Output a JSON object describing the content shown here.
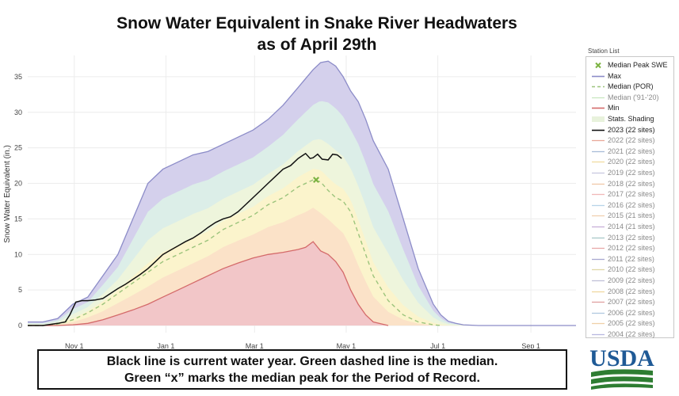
{
  "title_line1": "Snow Water Equivalent in Snake River Headwaters",
  "title_line2": "as of April 29th",
  "caption_line1": "Black line is current water year. Green dashed line is the median.",
  "caption_line2": "Green “x” marks the median peak for the Period of Record.",
  "logo_text": "USDA",
  "legend": {
    "header": "Station List",
    "items": [
      {
        "label": "Median Peak SWE",
        "symbol": "x",
        "color": "#7cb342"
      },
      {
        "label": "Max",
        "symbol": "line",
        "color": "#8c8cc8"
      },
      {
        "label": "Median (POR)",
        "symbol": "dash",
        "color": "#9cc47c"
      },
      {
        "label": "Median ('91-'20)",
        "symbol": "line",
        "color": "#c8e6c0",
        "faded": true
      },
      {
        "label": "Min",
        "symbol": "line",
        "color": "#d46a6a"
      },
      {
        "label": "Stats. Shading",
        "symbol": "band",
        "color": "#e8f2dc"
      },
      {
        "label": "2023 (22 sites)",
        "symbol": "line",
        "color": "#111111"
      },
      {
        "label": "2022 (22 sites)",
        "symbol": "line",
        "color": "#e8a898",
        "faded": true
      },
      {
        "label": "2021 (22 sites)",
        "symbol": "line",
        "color": "#a8bcd8",
        "faded": true
      },
      {
        "label": "2020 (22 sites)",
        "symbol": "line",
        "color": "#f0dca0",
        "faded": true
      },
      {
        "label": "2019 (22 sites)",
        "symbol": "line",
        "color": "#c8c8e0",
        "faded": true
      },
      {
        "label": "2018 (22 sites)",
        "symbol": "line",
        "color": "#f0c8a8",
        "faded": true
      },
      {
        "label": "2017 (22 sites)",
        "symbol": "line",
        "color": "#f0b8b8",
        "faded": true
      },
      {
        "label": "2016 (22 sites)",
        "symbol": "line",
        "color": "#b8d4e8",
        "faded": true
      },
      {
        "label": "2015 (21 sites)",
        "symbol": "line",
        "color": "#f0d0b0",
        "faded": true
      },
      {
        "label": "2014 (21 sites)",
        "symbol": "line",
        "color": "#c8b0d8",
        "faded": true
      },
      {
        "label": "2013 (22 sites)",
        "symbol": "line",
        "color": "#a8c8c8",
        "faded": true
      },
      {
        "label": "2012 (22 sites)",
        "symbol": "line",
        "color": "#e8a8a8",
        "faded": true
      },
      {
        "label": "2011 (22 sites)",
        "symbol": "line",
        "color": "#a8a8d0",
        "faded": true
      },
      {
        "label": "2010 (22 sites)",
        "symbol": "line",
        "color": "#e0d8a8",
        "faded": true
      },
      {
        "label": "2009 (22 sites)",
        "symbol": "line",
        "color": "#c0c0d8",
        "faded": true
      },
      {
        "label": "2008 (22 sites)",
        "symbol": "line",
        "color": "#f0d8a0",
        "faded": true
      },
      {
        "label": "2007 (22 sites)",
        "symbol": "line",
        "color": "#e0a0a0",
        "faded": true
      },
      {
        "label": "2006 (22 sites)",
        "symbol": "line",
        "color": "#b0c8e0",
        "faded": true
      },
      {
        "label": "2005 (22 sites)",
        "symbol": "line",
        "color": "#f0d0a8",
        "faded": true
      },
      {
        "label": "2004 (22 sites)",
        "symbol": "line",
        "color": "#b8b8e0",
        "faded": true
      }
    ]
  },
  "chart_data": {
    "type": "area",
    "title": "Snow Water Equivalent in Snake River Headwaters as of April 29th",
    "xlabel": "",
    "ylabel": "Snow Water Equivalent (in.)",
    "x_unit": "days since Oct 1 (water year)",
    "xlim": [
      0,
      365
    ],
    "ylim": [
      -1,
      38
    ],
    "yticks": [
      0,
      5,
      10,
      15,
      20,
      25,
      30,
      35
    ],
    "xticks": [
      {
        "label": "Nov 1",
        "x": 31
      },
      {
        "label": "Jan 1",
        "x": 92
      },
      {
        "label": "Mar 1",
        "x": 151
      },
      {
        "label": "May 1",
        "x": 212
      },
      {
        "label": "Jul 1",
        "x": 273
      },
      {
        "label": "Sep 1",
        "x": 335
      }
    ],
    "grid": true,
    "legend_position": "right",
    "band_colors": {
      "max_band": "#d4d0ec",
      "p90_band": "#dceee8",
      "p70_band": "#eef5dc",
      "p50_band": "#fbf4cc",
      "p30_band": "#fbe2c8",
      "p10_band": "#f2c6c8"
    },
    "series": [
      {
        "name": "Max",
        "color": "#8c8cc8",
        "x": [
          0,
          10,
          20,
          25,
          30,
          40,
          50,
          60,
          70,
          80,
          90,
          100,
          110,
          120,
          130,
          140,
          150,
          160,
          170,
          180,
          190,
          195,
          200,
          205,
          210,
          215,
          220,
          225,
          230,
          240,
          250,
          260,
          270,
          275,
          280,
          285,
          290,
          300,
          365
        ],
        "values": [
          0.5,
          0.5,
          1,
          2,
          3,
          4,
          7,
          10,
          15,
          20,
          22,
          23,
          24,
          24.5,
          25.5,
          26.5,
          27.5,
          29,
          31,
          33.5,
          36,
          37,
          37.2,
          36.5,
          35,
          33,
          31.5,
          29,
          26,
          22,
          15,
          8,
          3,
          1.5,
          0.6,
          0.3,
          0.1,
          0,
          0
        ]
      },
      {
        "name": "Median (POR)",
        "color": "#9cc47c",
        "x": [
          0,
          10,
          20,
          30,
          40,
          50,
          60,
          70,
          80,
          90,
          100,
          110,
          120,
          130,
          140,
          150,
          160,
          170,
          180,
          190,
          195,
          200,
          205,
          210,
          215,
          220,
          225,
          230,
          240,
          250,
          260,
          270,
          275
        ],
        "values": [
          0,
          0,
          0.2,
          0.8,
          1.8,
          3,
          4.5,
          6,
          7.5,
          9,
          10,
          11,
          12,
          13.5,
          14.5,
          15.5,
          17,
          18,
          19.5,
          20.5,
          20.2,
          19,
          18,
          17.5,
          16,
          13,
          10,
          7,
          3.5,
          1.5,
          0.5,
          0.1,
          0
        ]
      },
      {
        "name": "Min",
        "color": "#d46a6a",
        "x": [
          0,
          20,
          30,
          40,
          50,
          60,
          70,
          80,
          90,
          100,
          110,
          120,
          130,
          140,
          150,
          160,
          170,
          180,
          185,
          190,
          195,
          200,
          205,
          210,
          215,
          220,
          225,
          230,
          240
        ],
        "values": [
          0,
          0,
          0.1,
          0.3,
          0.8,
          1.5,
          2.2,
          3,
          4,
          5,
          6,
          7,
          8,
          8.8,
          9.5,
          10,
          10.3,
          10.7,
          11,
          11.8,
          10.5,
          10,
          9,
          7.5,
          5,
          3,
          1.5,
          0.5,
          0
        ]
      },
      {
        "name": "2023 (22 sites)",
        "color": "#111111",
        "x": [
          0,
          10,
          20,
          25,
          28,
          32,
          36,
          40,
          45,
          50,
          55,
          60,
          65,
          70,
          75,
          80,
          85,
          90,
          95,
          100,
          105,
          110,
          115,
          120,
          125,
          130,
          135,
          140,
          145,
          150,
          155,
          160,
          165,
          170,
          175,
          180,
          185,
          188,
          190,
          193,
          196,
          200,
          203,
          206,
          209
        ],
        "values": [
          0,
          0,
          0.3,
          0.5,
          1.5,
          3.3,
          3.5,
          3.5,
          3.6,
          3.8,
          4.5,
          5.2,
          5.8,
          6.5,
          7.2,
          8,
          9,
          10,
          10.6,
          11.2,
          11.8,
          12.3,
          13,
          13.8,
          14.5,
          15,
          15.3,
          16,
          17,
          18,
          19,
          20,
          21,
          22,
          22.5,
          23.5,
          24.2,
          23.5,
          23.6,
          24.1,
          23.4,
          23.3,
          24.1,
          24,
          23.5
        ]
      },
      {
        "name": "Median Peak SWE",
        "color": "#7cb342",
        "marker": "x",
        "x": [
          192
        ],
        "values": [
          20.5
        ]
      }
    ]
  }
}
